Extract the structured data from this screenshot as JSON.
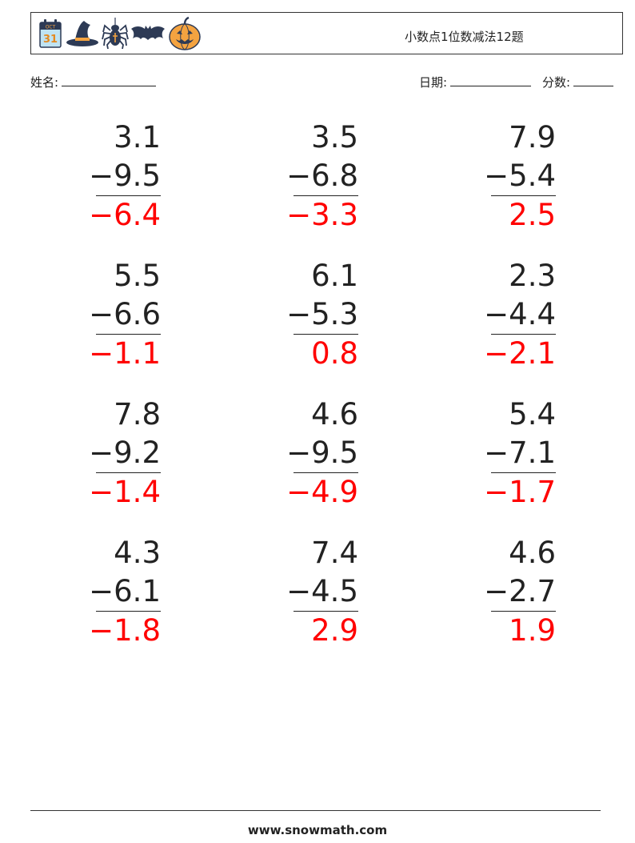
{
  "header": {
    "title": "小数点1位数减法12题",
    "calendar_month": "OCT",
    "calendar_day": "31",
    "icons": [
      "calendar-icon",
      "witch-hat-icon",
      "spider-icon",
      "bat-icon",
      "pumpkin-icon"
    ]
  },
  "info": {
    "name_label": "姓名:",
    "date_label": "日期:",
    "score_label": "分数:"
  },
  "problems": [
    {
      "top": "3.1",
      "bottom": "−9.5",
      "answer": "−6.4"
    },
    {
      "top": "3.5",
      "bottom": "−6.8",
      "answer": "−3.3"
    },
    {
      "top": "7.9",
      "bottom": "−5.4",
      "answer": "2.5"
    },
    {
      "top": "5.5",
      "bottom": "−6.6",
      "answer": "−1.1"
    },
    {
      "top": "6.1",
      "bottom": "−5.3",
      "answer": "0.8"
    },
    {
      "top": "2.3",
      "bottom": "−4.4",
      "answer": "−2.1"
    },
    {
      "top": "7.8",
      "bottom": "−9.2",
      "answer": "−1.4"
    },
    {
      "top": "4.6",
      "bottom": "−9.5",
      "answer": "−4.9"
    },
    {
      "top": "5.4",
      "bottom": "−7.1",
      "answer": "−1.7"
    },
    {
      "top": "4.3",
      "bottom": "−6.1",
      "answer": "−1.8"
    },
    {
      "top": "7.4",
      "bottom": "−4.5",
      "answer": "2.9"
    },
    {
      "top": "4.6",
      "bottom": "−2.7",
      "answer": "1.9"
    }
  ],
  "footer": {
    "site": "www.snowmath.com"
  },
  "colors": {
    "answer": "#ff0000",
    "text": "#222222"
  }
}
